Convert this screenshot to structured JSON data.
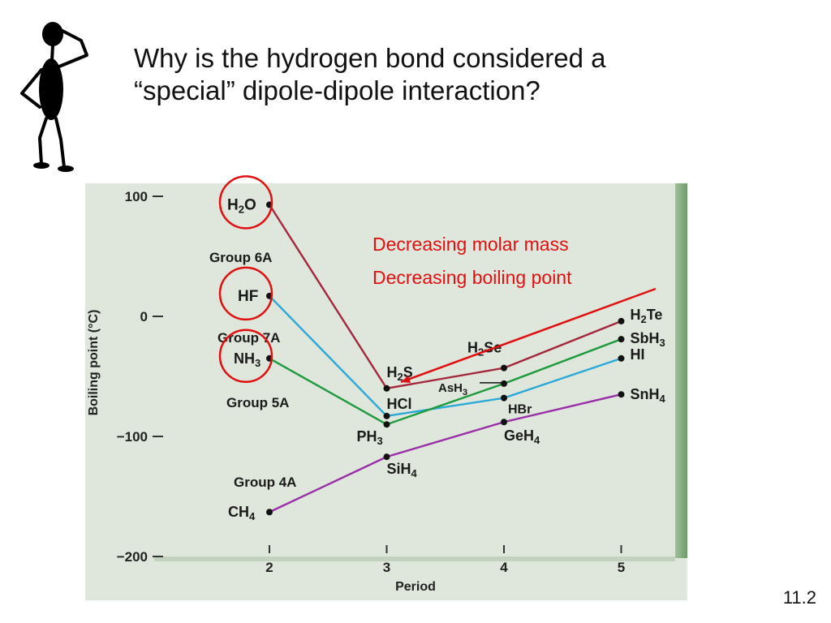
{
  "slide": {
    "title_line1": "Why is the hydrogen bond considered a",
    "title_line2": "“special” dipole-dipole interaction?",
    "slide_number": "11.2",
    "clipart": "thinking-stick-figure-icon",
    "annotation_line1": "Decreasing molar mass",
    "annotation_line2": "Decreasing boiling point",
    "annotation_color": "#e01010"
  },
  "chart_data": {
    "type": "line",
    "xlabel": "Period",
    "ylabel": "Boiling point (°C)",
    "x": [
      2,
      3,
      4,
      5
    ],
    "xticks": [
      "2",
      "3",
      "4",
      "5"
    ],
    "yticks": [
      "100",
      "0",
      "−100",
      "−200"
    ],
    "ylim": [
      -200,
      100
    ],
    "background": "#dfe6dc",
    "series": [
      {
        "name": "Group 6A",
        "color": "#a3283c",
        "values": [
          93,
          -60,
          -43,
          -4
        ],
        "points": [
          "H2O",
          "H2S",
          "H2Se",
          "H2Te"
        ]
      },
      {
        "name": "Group 7A",
        "color": "#2aa8d8",
        "values": [
          17,
          -83,
          -68,
          -35
        ],
        "points": [
          "HF",
          "HCl",
          "HBr",
          "HI"
        ]
      },
      {
        "name": "Group 5A",
        "color": "#1e9a3c",
        "values": [
          -35,
          -90,
          -56,
          -19
        ],
        "points": [
          "NH3",
          "PH3",
          "AsH3",
          "SbH3"
        ]
      },
      {
        "name": "Group 4A",
        "color": "#9a2ea8",
        "values": [
          -163,
          -117,
          -88,
          -65
        ],
        "points": [
          "CH4",
          "SiH4",
          "GeH4",
          "SnH4"
        ]
      }
    ],
    "circled_points": [
      "H2O",
      "HF",
      "NH3"
    ]
  }
}
